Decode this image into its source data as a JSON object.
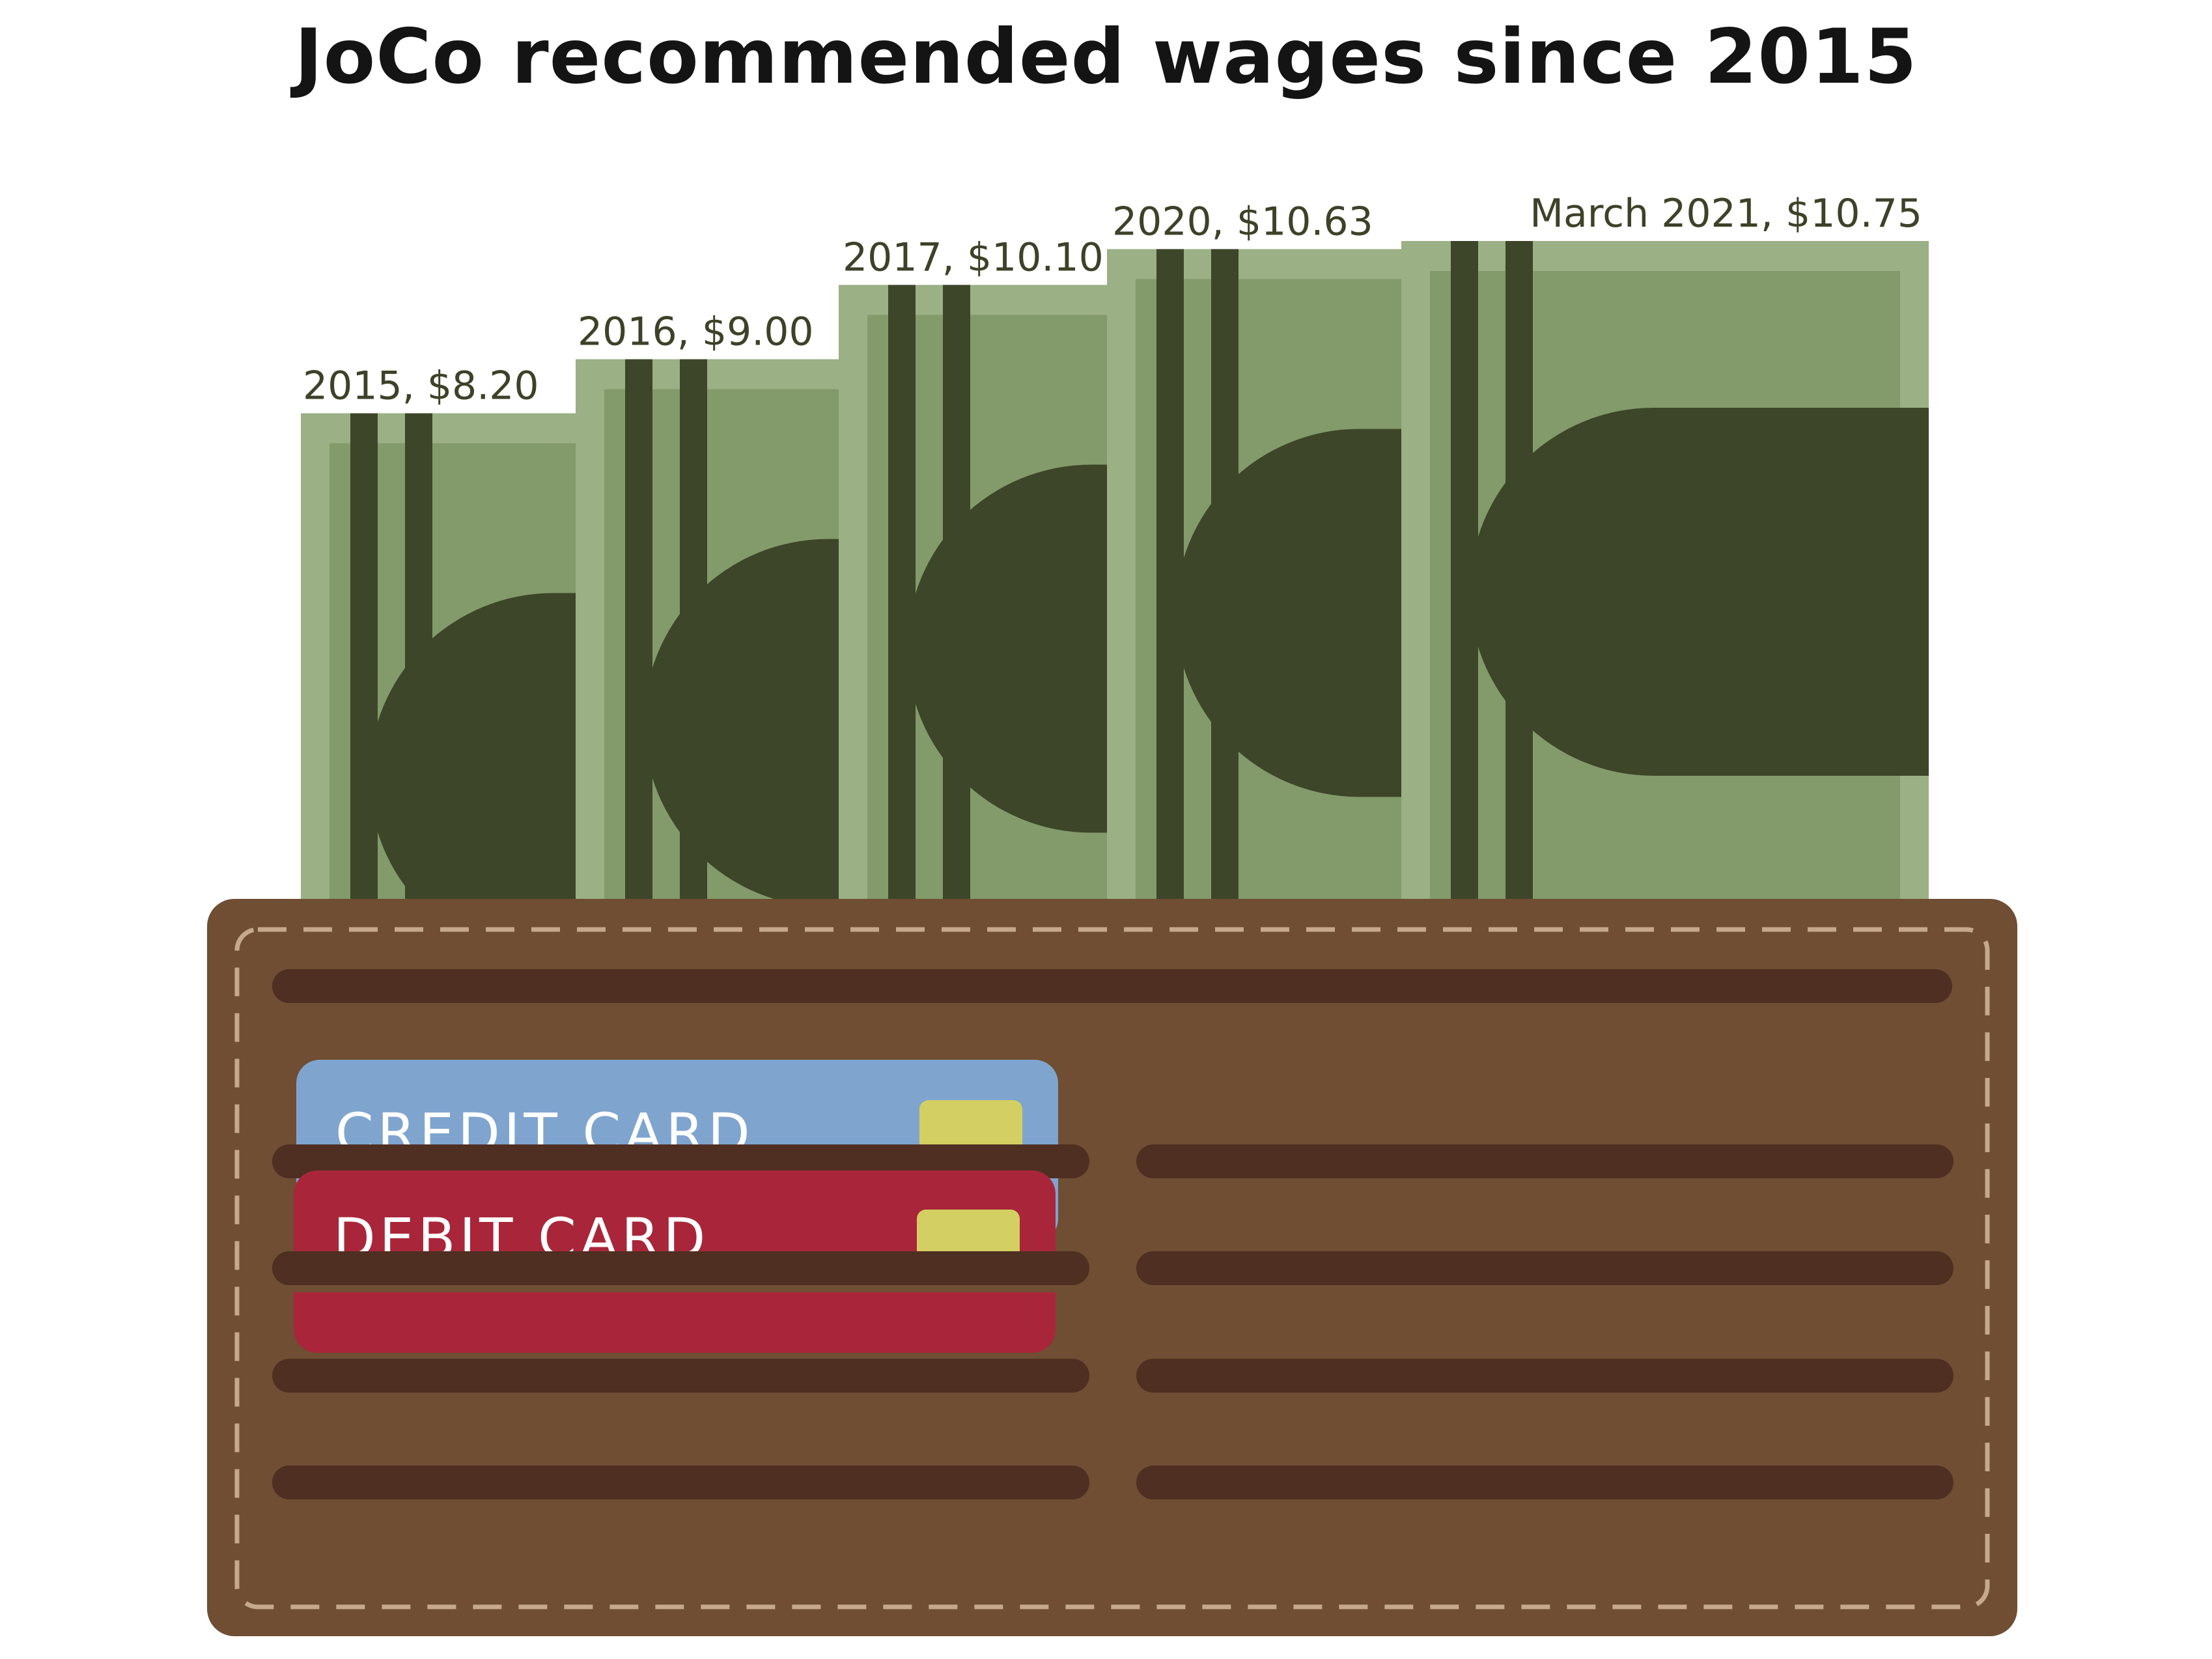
{
  "chart_data": {
    "type": "bar",
    "title": "JoCo recommended wages since 2015",
    "categories": [
      "2015",
      "2016",
      "2017",
      "2020",
      "March 2021"
    ],
    "values": [
      8.2,
      9.0,
      10.1,
      10.63,
      10.75
    ],
    "labels": [
      "2015, $8.20",
      "2016, $9.00",
      "2017, $10.10",
      "2020, $10.63",
      "March 2021, $10.75"
    ],
    "xlabel": "",
    "ylabel": "",
    "ylim": [
      0,
      10.75
    ],
    "grid": false,
    "legend": "none"
  },
  "wallet": {
    "credit_card_label": "CREDIT CARD",
    "debit_card_label": "DEBIT CARD"
  },
  "colors": {
    "bill_outer": "#9bb085",
    "bill_inner": "#839a6b",
    "bill_dark": "#3d4628",
    "wallet": "#6f4e33",
    "wallet_slot": "#4e2f22",
    "wallet_stitch": "#c6a88c",
    "credit_card": "#7fa5cf",
    "debit_card": "#a9263a",
    "chip": "#d4cf62",
    "label": "#3d4228",
    "title": "#141414"
  }
}
